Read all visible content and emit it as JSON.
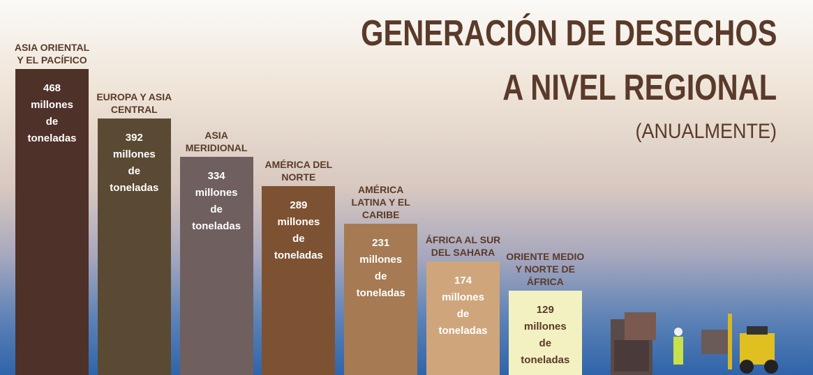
{
  "chart_data": {
    "type": "bar",
    "title": [
      "GENERACIÓN DE DESECHOS",
      "A NIVEL REGIONAL"
    ],
    "subtitle": "(ANUALMENTE)",
    "categories": [
      "ASIA ORIENTAL Y EL PACÍFICO",
      "EUROPA Y ASIA CENTRAL",
      "ASIA MERIDIONAL",
      "AMÉRICA DEL NORTE",
      "AMÉRICA LATINA Y EL CARIBE",
      "ÁFRICA AL SUR DEL SAHARA",
      "ORIENTE MEDIO Y NORTE DE ÁFRICA"
    ],
    "values": [
      468,
      392,
      334,
      289,
      231,
      174,
      129
    ],
    "value_labels": [
      "468 millones de toneladas",
      "392 millones de toneladas",
      "334 millones de toneladas",
      "289 millones de toneladas",
      "231 millones de toneladas",
      "174 millones de toneladas",
      "129 millones de toneladas"
    ],
    "colors": [
      "#4e3129",
      "#5b4a33",
      "#6f5f5f",
      "#7d5232",
      "#a67a52",
      "#cfa67b",
      "#f3f1c2"
    ]
  }
}
